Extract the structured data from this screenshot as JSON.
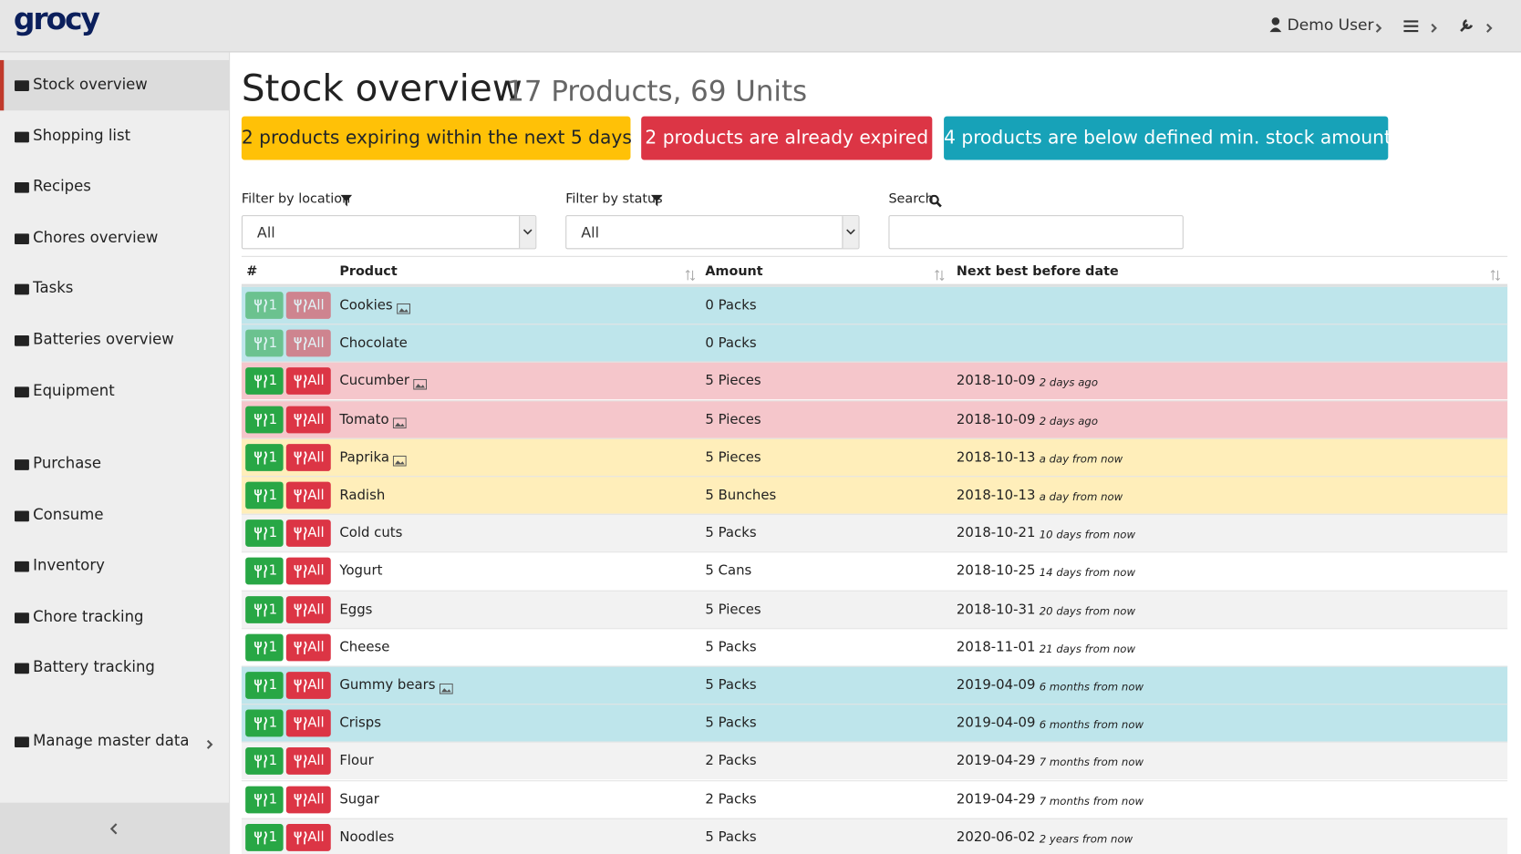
{
  "header": {
    "logo": "grocy",
    "user": "Demo User"
  },
  "sidebar": {
    "groups": [
      [
        {
          "label": "Stock overview",
          "active": true
        },
        {
          "label": "Shopping list"
        },
        {
          "label": "Recipes"
        },
        {
          "label": "Chores overview"
        },
        {
          "label": "Tasks"
        },
        {
          "label": "Batteries overview"
        },
        {
          "label": "Equipment"
        }
      ],
      [
        {
          "label": "Purchase"
        },
        {
          "label": "Consume"
        },
        {
          "label": "Inventory"
        },
        {
          "label": "Chore tracking"
        },
        {
          "label": "Battery tracking"
        }
      ],
      [
        {
          "label": "Manage master data",
          "submenu": true
        }
      ]
    ]
  },
  "main": {
    "title": "Stock overview",
    "subtitle": "17 Products, 69 Units",
    "alerts": [
      {
        "text": "2 products expiring within the next 5 days",
        "color": "#ffc107",
        "text_color": "#212529"
      },
      {
        "text": "2 products are already expired",
        "color": "#dc3545",
        "text_color": "#ffffff"
      },
      {
        "text": "4 products are below defined min. stock amount",
        "color": "#17a2b8",
        "text_color": "#ffffff"
      }
    ],
    "filters": [
      {
        "label": "Filter by location",
        "value": "All"
      },
      {
        "label": "Filter by status",
        "value": "All"
      },
      {
        "label": "Search"
      }
    ]
  },
  "table": {
    "columns": [
      "#",
      "Product",
      "Amount",
      "Next best before date"
    ],
    "consume_one": "1",
    "consume_all": "All",
    "rows": [
      {
        "product": "Cookies",
        "picture": true,
        "amount": "0 Packs",
        "disabled": true,
        "color": "#bee5eb"
      },
      {
        "product": "Chocolate",
        "amount": "0 Packs",
        "disabled": true,
        "color": "#bee5eb"
      },
      {
        "product": "Cucumber",
        "picture": true,
        "amount": "5 Pieces",
        "date": "2018-10-09",
        "relative": "2 days ago",
        "color": "#f5c6cb"
      },
      {
        "product": "Tomato",
        "picture": true,
        "amount": "5 Pieces",
        "date": "2018-10-09",
        "relative": "2 days ago",
        "color": "#f5c6cb"
      },
      {
        "product": "Paprika",
        "picture": true,
        "amount": "5 Pieces",
        "date": "2018-10-13",
        "relative": "a day from now",
        "color": "#ffeeba"
      },
      {
        "product": "Radish",
        "amount": "5 Bunches",
        "date": "2018-10-13",
        "relative": "a day from now",
        "color": "#ffeeba"
      },
      {
        "product": "Cold cuts",
        "amount": "5 Packs",
        "date": "2018-10-21",
        "relative": "10 days from now",
        "color": "#f2f2f2"
      },
      {
        "product": "Yogurt",
        "amount": "5 Cans",
        "date": "2018-10-25",
        "relative": "14 days from now",
        "color": "#ffffff"
      },
      {
        "product": "Eggs",
        "amount": "5 Pieces",
        "date": "2018-10-31",
        "relative": "20 days from now",
        "color": "#f2f2f2"
      },
      {
        "product": "Cheese",
        "amount": "5 Packs",
        "date": "2018-11-01",
        "relative": "21 days from now",
        "color": "#ffffff"
      },
      {
        "product": "Gummy bears",
        "picture": true,
        "amount": "5 Packs",
        "date": "2019-04-09",
        "relative": "6 months from now",
        "color": "#bee5eb"
      },
      {
        "product": "Crisps",
        "amount": "5 Packs",
        "date": "2019-04-09",
        "relative": "6 months from now",
        "color": "#bee5eb"
      },
      {
        "product": "Flour",
        "amount": "2 Packs",
        "date": "2019-04-29",
        "relative": "7 months from now",
        "color": "#f2f2f2"
      },
      {
        "product": "Sugar",
        "amount": "2 Packs",
        "date": "2019-04-29",
        "relative": "7 months from now",
        "color": "#ffffff"
      },
      {
        "product": "Noodles",
        "amount": "5 Packs",
        "date": "2020-06-02",
        "relative": "2 years from now",
        "color": "#f2f2f2"
      }
    ]
  }
}
